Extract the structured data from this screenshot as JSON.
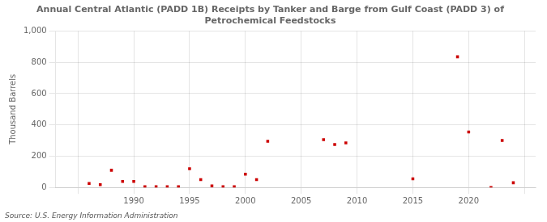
{
  "chart_data": {
    "type": "scatter",
    "title": "Annual Central Atlantic (PADD 1B) Receipts by Tanker and Barge from Gulf Coast (PADD 3) of\nPetrochemical Feedstocks",
    "ylabel": "Thousand Barrels",
    "annotation": "Source: U.S. Energy Information Administration",
    "x": [
      1986,
      1987,
      1988,
      1989,
      1990,
      1991,
      1992,
      1993,
      1994,
      1995,
      1996,
      1997,
      1998,
      1999,
      2000,
      2001,
      2002,
      2007,
      2008,
      2009,
      2015,
      2019,
      2020,
      2022,
      2023,
      2024
    ],
    "values": [
      25,
      18,
      110,
      38,
      38,
      5,
      5,
      5,
      5,
      120,
      50,
      10,
      5,
      5,
      85,
      50,
      295,
      305,
      275,
      285,
      55,
      835,
      355,
      0,
      300,
      30
    ],
    "color": "#cc0000",
    "marker": "square",
    "xlim": [
      1983,
      2026
    ],
    "xticks": [
      {
        "value": 1985,
        "label": ""
      },
      1990,
      1995,
      2000,
      2005,
      2010,
      2015,
      2020,
      {
        "value": 2025,
        "label": ""
      }
    ],
    "ylim": [
      0,
      1000
    ],
    "yticks": [
      0,
      200,
      400,
      600,
      800,
      {
        "value": 1000,
        "label": "1,000"
      }
    ],
    "grid": true
  }
}
